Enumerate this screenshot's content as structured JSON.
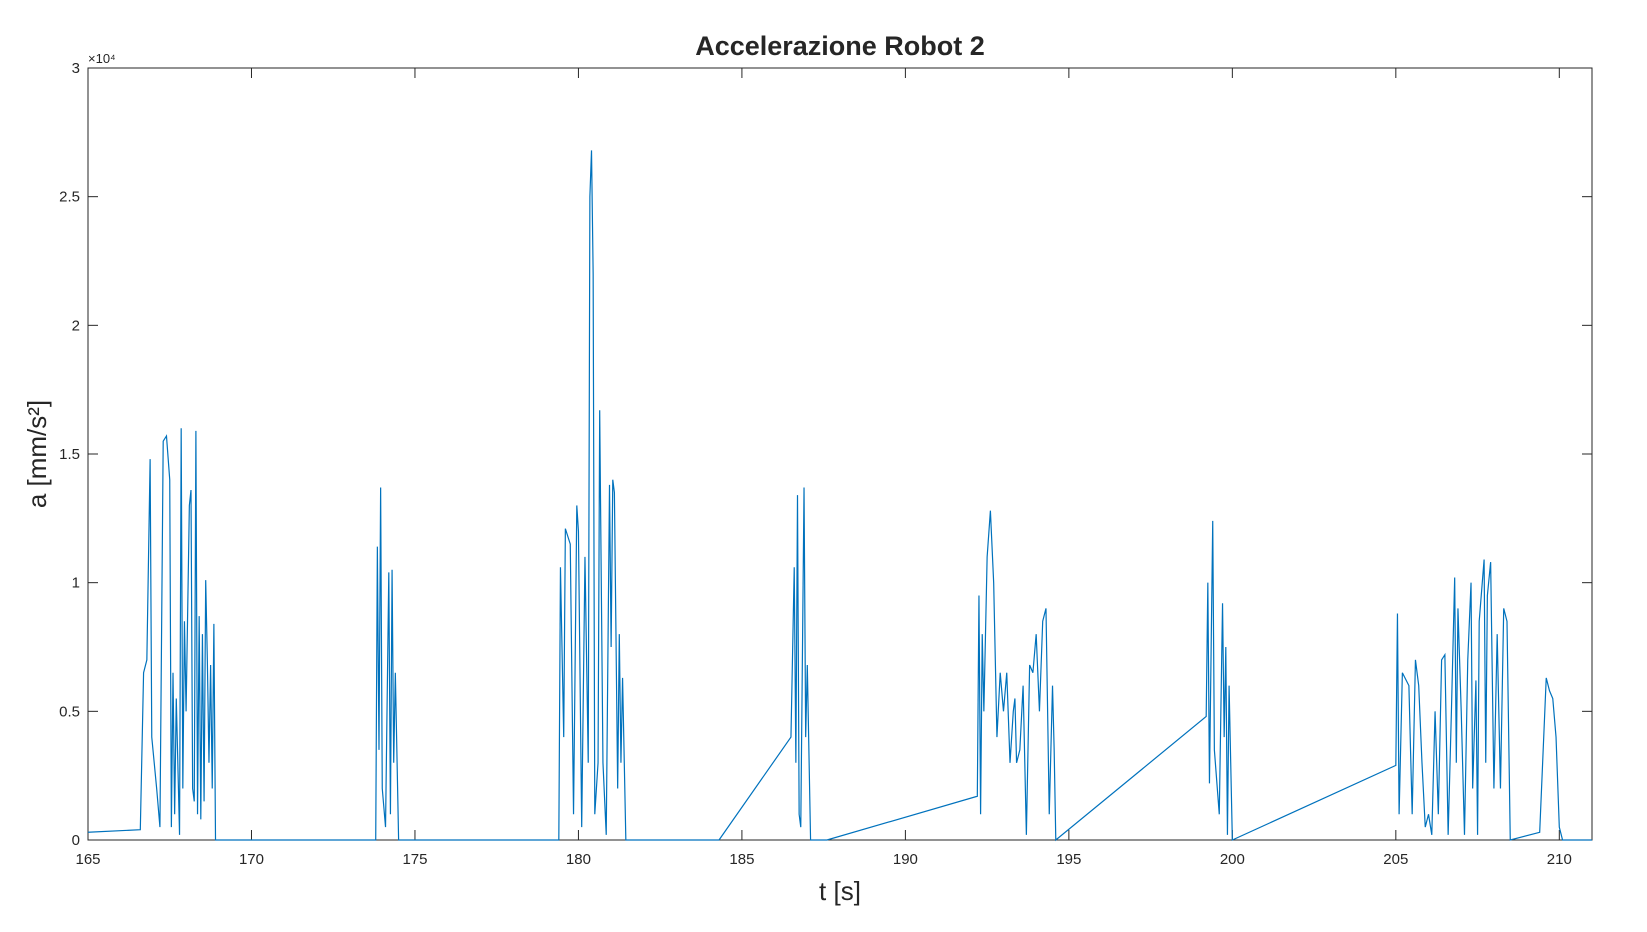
{
  "chart_data": {
    "type": "line",
    "title": "Accelerazione Robot 2",
    "x_label": "t [s]",
    "y_label": "a [mm/s²]",
    "y_exponent_label": "×10⁴",
    "xlim": [
      165,
      211
    ],
    "xticks": [
      165,
      170,
      175,
      180,
      185,
      190,
      195,
      200,
      205,
      210
    ],
    "ylim": [
      0,
      3
    ],
    "yticks": [
      0,
      0.5,
      1,
      1.5,
      2,
      2.5,
      3
    ],
    "grid": false,
    "series": [
      {
        "color": "#0072bd",
        "x": [
          165,
          166.6,
          166.7,
          166.8,
          166.9,
          166.95,
          167.1,
          167.2,
          167.3,
          167.4,
          167.5,
          167.55,
          167.6,
          167.65,
          167.7,
          167.8,
          167.85,
          167.9,
          167.95,
          168.0,
          168.1,
          168.15,
          168.2,
          168.25,
          168.3,
          168.35,
          168.4,
          168.45,
          168.5,
          168.55,
          168.6,
          168.65,
          168.7,
          168.75,
          168.8,
          168.85,
          168.9,
          173.8,
          173.85,
          173.9,
          173.95,
          174.0,
          174.1,
          174.2,
          174.25,
          174.3,
          174.35,
          174.4,
          174.5,
          179.4,
          179.45,
          179.55,
          179.6,
          179.75,
          179.85,
          179.95,
          180.0,
          180.1,
          180.2,
          180.3,
          180.35,
          180.4,
          180.45,
          180.5,
          180.6,
          180.65,
          180.75,
          180.85,
          180.95,
          181.0,
          181.05,
          181.1,
          181.2,
          181.25,
          181.3,
          181.35,
          181.45,
          184.3,
          186.5,
          186.6,
          186.65,
          186.7,
          186.75,
          186.8,
          186.9,
          186.95,
          187.0,
          187.1,
          187.6,
          192.2,
          192.25,
          192.3,
          192.35,
          192.4,
          192.5,
          192.6,
          192.7,
          192.8,
          192.9,
          193.0,
          193.1,
          193.2,
          193.3,
          193.35,
          193.4,
          193.5,
          193.6,
          193.7,
          193.8,
          193.9,
          194.0,
          194.1,
          194.2,
          194.3,
          194.4,
          194.5,
          194.55,
          194.6,
          199.2,
          199.25,
          199.3,
          199.4,
          199.45,
          199.6,
          199.7,
          199.75,
          199.8,
          199.85,
          199.9,
          200.0,
          205.0,
          205.05,
          205.1,
          205.2,
          205.4,
          205.5,
          205.6,
          205.7,
          205.8,
          205.9,
          206.0,
          206.1,
          206.2,
          206.3,
          206.4,
          206.5,
          206.6,
          206.7,
          206.8,
          206.85,
          206.9,
          207.0,
          207.1,
          207.2,
          207.3,
          207.35,
          207.45,
          207.5,
          207.55,
          207.7,
          207.75,
          207.8,
          207.9,
          208.0,
          208.1,
          208.2,
          208.3,
          208.4,
          208.5,
          209.4,
          209.6,
          209.7,
          209.8,
          209.9,
          210.0,
          210.1,
          211
        ],
        "values": [
          0.03,
          0.04,
          0.65,
          0.7,
          1.48,
          0.4,
          0.2,
          0.05,
          1.55,
          1.57,
          1.4,
          0.05,
          0.65,
          0.1,
          0.55,
          0.02,
          1.6,
          0.2,
          0.85,
          0.5,
          1.3,
          1.36,
          0.2,
          0.15,
          1.59,
          0.1,
          0.87,
          0.08,
          0.8,
          0.15,
          1.01,
          0.7,
          0.3,
          0.68,
          0.2,
          0.84,
          0.0,
          0.0,
          1.14,
          0.35,
          1.37,
          0.2,
          0.05,
          1.04,
          0.1,
          1.05,
          0.3,
          0.65,
          0.0,
          0.0,
          1.06,
          0.4,
          1.21,
          1.15,
          0.1,
          1.3,
          1.2,
          0.05,
          1.1,
          0.3,
          2.5,
          2.68,
          2.2,
          0.1,
          0.3,
          1.67,
          0.3,
          0.02,
          1.38,
          0.75,
          1.4,
          1.35,
          0.2,
          0.8,
          0.3,
          0.63,
          0.0,
          0.0,
          0.4,
          1.06,
          0.3,
          1.34,
          0.1,
          0.05,
          1.37,
          0.4,
          0.68,
          0.0,
          0.0,
          0.17,
          0.95,
          0.1,
          0.8,
          0.5,
          1.1,
          1.28,
          1.0,
          0.4,
          0.65,
          0.5,
          0.65,
          0.3,
          0.5,
          0.55,
          0.3,
          0.35,
          0.6,
          0.02,
          0.68,
          0.65,
          0.8,
          0.5,
          0.85,
          0.9,
          0.1,
          0.6,
          0.35,
          0.0,
          0.48,
          1.0,
          0.22,
          1.24,
          0.35,
          0.1,
          0.92,
          0.4,
          0.75,
          0.02,
          0.6,
          0.0,
          0.29,
          0.88,
          0.1,
          0.65,
          0.6,
          0.1,
          0.7,
          0.6,
          0.3,
          0.05,
          0.1,
          0.02,
          0.5,
          0.1,
          0.7,
          0.72,
          0.02,
          0.5,
          1.02,
          0.3,
          0.9,
          0.5,
          0.02,
          0.7,
          1.0,
          0.2,
          0.62,
          0.02,
          0.85,
          1.09,
          0.3,
          0.95,
          1.08,
          0.2,
          0.8,
          0.2,
          0.9,
          0.85,
          0.0,
          0.03,
          0.63,
          0.58,
          0.55,
          0.4,
          0.05,
          0.0,
          0.0
        ]
      }
    ]
  }
}
